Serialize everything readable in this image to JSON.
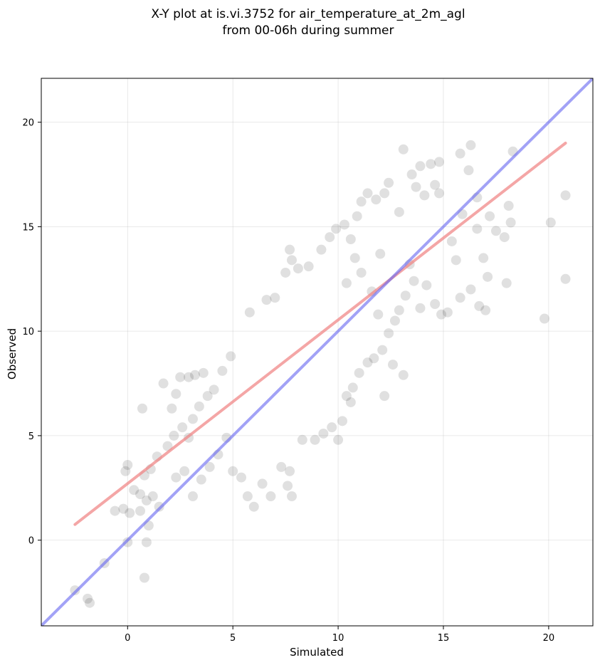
{
  "chart_data": {
    "type": "scatter",
    "title_line1": "X-Y plot at is.vi.3752 for air_temperature_at_2m_agl",
    "title_line2": "from 00-06h during summer",
    "xlabel": "Simulated",
    "ylabel": "Observed",
    "xlim": [
      -4.1,
      22.1
    ],
    "ylim": [
      -4.1,
      22.1
    ],
    "xticks": [
      0,
      5,
      10,
      15,
      20
    ],
    "yticks": [
      0,
      5,
      10,
      15,
      20
    ],
    "grid": true,
    "colors": {
      "points": "#000000",
      "regression_line": "#f08080",
      "identity_line": "#6464f0"
    },
    "regression_line": {
      "x": [
        -2.5,
        20.8
      ],
      "y": [
        0.75,
        19.0
      ]
    },
    "identity_line": {
      "x": [
        -4.1,
        22.1
      ],
      "y": [
        -4.1,
        22.1
      ]
    },
    "points": [
      [
        -2.5,
        -2.4
      ],
      [
        -1.9,
        -2.8
      ],
      [
        -1.8,
        -3.0
      ],
      [
        -1.1,
        -1.1
      ],
      [
        0.0,
        -0.1
      ],
      [
        0.9,
        -0.1
      ],
      [
        0.8,
        -1.8
      ],
      [
        1.0,
        0.7
      ],
      [
        -0.6,
        1.4
      ],
      [
        -0.2,
        1.5
      ],
      [
        0.1,
        1.3
      ],
      [
        0.6,
        1.4
      ],
      [
        -0.1,
        3.3
      ],
      [
        0.0,
        3.6
      ],
      [
        0.7,
        6.3
      ],
      [
        0.3,
        2.4
      ],
      [
        0.6,
        2.2
      ],
      [
        0.9,
        1.9
      ],
      [
        1.2,
        2.1
      ],
      [
        1.5,
        1.6
      ],
      [
        0.8,
        3.1
      ],
      [
        1.1,
        3.4
      ],
      [
        1.4,
        4.0
      ],
      [
        1.7,
        7.5
      ],
      [
        2.1,
        6.3
      ],
      [
        2.3,
        7.0
      ],
      [
        2.5,
        7.8
      ],
      [
        2.9,
        7.8
      ],
      [
        3.2,
        7.9
      ],
      [
        3.6,
        8.0
      ],
      [
        1.9,
        4.5
      ],
      [
        2.2,
        5.0
      ],
      [
        2.6,
        5.4
      ],
      [
        2.9,
        4.9
      ],
      [
        3.1,
        5.8
      ],
      [
        3.4,
        6.4
      ],
      [
        3.8,
        6.9
      ],
      [
        4.1,
        7.2
      ],
      [
        4.5,
        8.1
      ],
      [
        4.9,
        8.8
      ],
      [
        2.3,
        3.0
      ],
      [
        2.7,
        3.3
      ],
      [
        3.1,
        2.1
      ],
      [
        3.5,
        2.9
      ],
      [
        3.9,
        3.5
      ],
      [
        4.3,
        4.1
      ],
      [
        4.7,
        4.9
      ],
      [
        5.0,
        3.3
      ],
      [
        5.4,
        3.0
      ],
      [
        5.7,
        2.1
      ],
      [
        6.0,
        1.6
      ],
      [
        6.4,
        2.7
      ],
      [
        6.8,
        2.1
      ],
      [
        7.3,
        3.5
      ],
      [
        7.7,
        3.3
      ],
      [
        7.8,
        2.1
      ],
      [
        7.6,
        2.6
      ],
      [
        8.3,
        4.8
      ],
      [
        8.9,
        4.8
      ],
      [
        9.3,
        5.1
      ],
      [
        9.7,
        5.4
      ],
      [
        10.0,
        4.8
      ],
      [
        10.2,
        5.7
      ],
      [
        10.6,
        6.6
      ],
      [
        5.8,
        10.9
      ],
      [
        6.6,
        11.5
      ],
      [
        7.0,
        11.6
      ],
      [
        7.5,
        12.8
      ],
      [
        7.8,
        13.4
      ],
      [
        7.7,
        13.9
      ],
      [
        8.1,
        13.0
      ],
      [
        8.6,
        13.1
      ],
      [
        9.2,
        13.9
      ],
      [
        9.6,
        14.5
      ],
      [
        9.9,
        14.9
      ],
      [
        10.3,
        15.1
      ],
      [
        10.6,
        14.4
      ],
      [
        10.9,
        15.5
      ],
      [
        11.1,
        16.2
      ],
      [
        11.4,
        16.6
      ],
      [
        11.8,
        16.3
      ],
      [
        12.2,
        16.6
      ],
      [
        12.4,
        17.1
      ],
      [
        12.9,
        15.7
      ],
      [
        13.1,
        18.7
      ],
      [
        13.5,
        17.5
      ],
      [
        13.9,
        17.9
      ],
      [
        14.4,
        18.0
      ],
      [
        14.8,
        18.1
      ],
      [
        14.6,
        17.0
      ],
      [
        14.1,
        16.5
      ],
      [
        13.7,
        16.9
      ],
      [
        15.8,
        18.5
      ],
      [
        16.3,
        18.9
      ],
      [
        16.2,
        17.7
      ],
      [
        15.9,
        15.6
      ],
      [
        16.6,
        16.4
      ],
      [
        16.9,
        13.5
      ],
      [
        17.2,
        15.5
      ],
      [
        17.5,
        14.8
      ],
      [
        17.9,
        14.5
      ],
      [
        18.2,
        15.2
      ],
      [
        18.1,
        16.0
      ],
      [
        18.3,
        18.6
      ],
      [
        18.0,
        12.3
      ],
      [
        17.1,
        12.6
      ],
      [
        17.0,
        11.0
      ],
      [
        16.7,
        11.2
      ],
      [
        16.3,
        12.0
      ],
      [
        15.8,
        11.6
      ],
      [
        15.6,
        13.4
      ],
      [
        15.2,
        10.9
      ],
      [
        14.9,
        10.8
      ],
      [
        14.6,
        11.3
      ],
      [
        14.2,
        12.2
      ],
      [
        13.9,
        11.1
      ],
      [
        13.6,
        12.4
      ],
      [
        13.2,
        11.7
      ],
      [
        12.9,
        11.0
      ],
      [
        12.7,
        10.5
      ],
      [
        12.4,
        9.9
      ],
      [
        12.1,
        9.1
      ],
      [
        11.7,
        8.7
      ],
      [
        11.4,
        8.5
      ],
      [
        11.0,
        8.0
      ],
      [
        10.7,
        7.3
      ],
      [
        10.4,
        6.9
      ],
      [
        13.1,
        7.9
      ],
      [
        12.6,
        8.4
      ],
      [
        12.2,
        6.9
      ],
      [
        11.9,
        10.8
      ],
      [
        11.6,
        11.9
      ],
      [
        11.1,
        12.8
      ],
      [
        10.8,
        13.5
      ],
      [
        10.4,
        12.3
      ],
      [
        19.8,
        10.6
      ],
      [
        20.1,
        15.2
      ],
      [
        20.8,
        16.5
      ],
      [
        20.8,
        12.5
      ],
      [
        15.4,
        14.3
      ],
      [
        16.6,
        14.9
      ],
      [
        14.8,
        16.6
      ],
      [
        13.4,
        13.2
      ],
      [
        12.0,
        13.7
      ]
    ]
  }
}
